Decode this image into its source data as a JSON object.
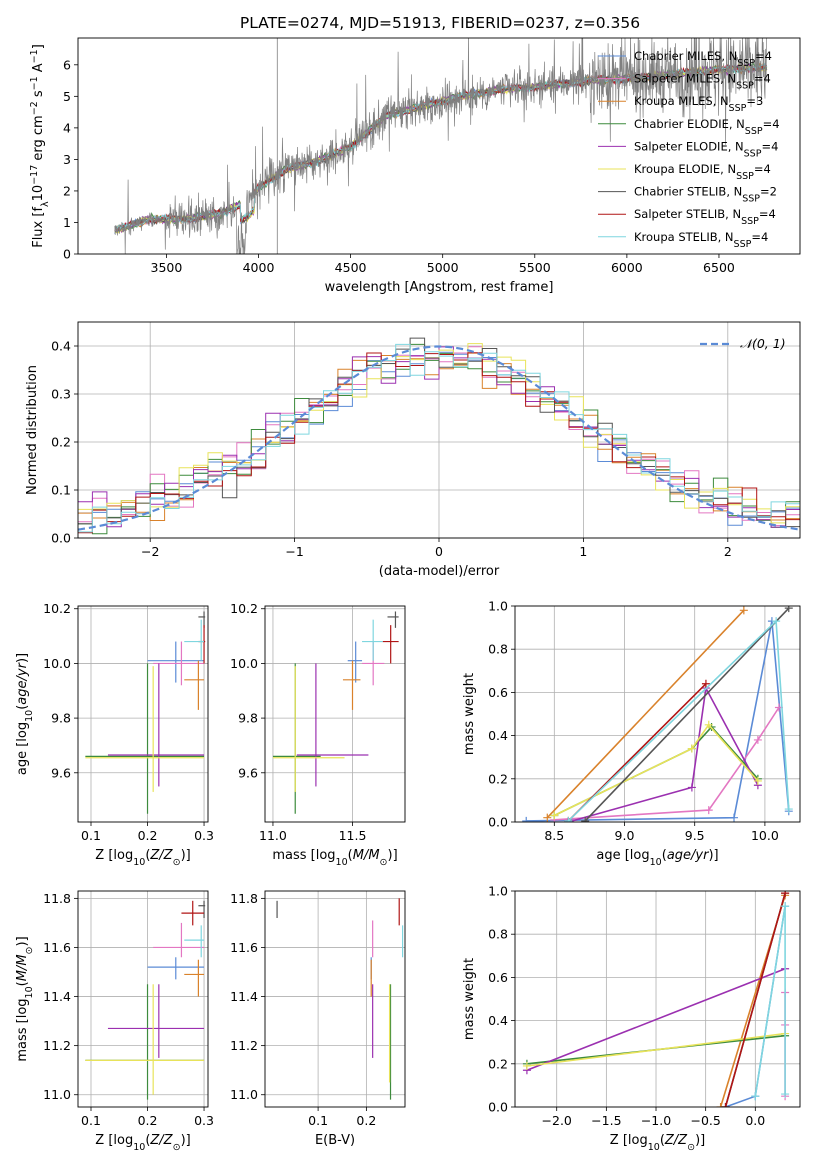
{
  "figure": {
    "title": "PLATE=0274, MJD=51913, FIBERID=0237, z=0.356"
  },
  "colors": {
    "Chabrier MILES": "#5b8bd6",
    "Salpeter MILES": "#e377c2",
    "Kroupa MILES": "#d9822b",
    "Chabrier ELODIE": "#3d8b3d",
    "Salpeter ELODIE": "#9b30b0",
    "Kroupa ELODIE": "#e8e35a",
    "Chabrier STELIB": "#555555",
    "Salpeter STELIB": "#b01515",
    "Kroupa STELIB": "#7fd6df",
    "data": "#808080",
    "normal_curve": "#5b8bd6",
    "grid": "#b0b0b0"
  },
  "chart_data": [
    {
      "id": "spectrum",
      "type": "line",
      "title": "PLATE=0274, MJD=51913, FIBERID=0237, z=0.356",
      "xlabel": "wavelength [Angstrom, rest frame]",
      "ylabel": "Flux [f_λ 10^-17 erg cm^-2 s^-1 A^-1]",
      "xlim": [
        3020,
        6940
      ],
      "ylim": [
        0,
        6.85
      ],
      "xticks": [
        3500,
        4000,
        4500,
        5000,
        5500,
        6000,
        6500
      ],
      "yticks": [
        0,
        1,
        2,
        3,
        4,
        5,
        6
      ],
      "grid": false,
      "legend_position": "top-right",
      "legend": [
        "Chabrier MILES, N_SSP=4",
        "Salpeter MILES, N_SSP=4",
        "Kroupa MILES, N_SSP=3",
        "Chabrier ELODIE, N_SSP=4",
        "Salpeter ELODIE, N_SSP=4",
        "Kroupa ELODIE, N_SSP=4",
        "Chabrier STELIB, N_SSP=2",
        "Salpeter STELIB, N_SSP=4",
        "Kroupa STELIB, N_SSP=4"
      ],
      "data_trend": {
        "x": [
          3220,
          3400,
          3600,
          3800,
          3950,
          4000,
          4150,
          4300,
          4500,
          4700,
          4900,
          5100,
          5300,
          5500,
          5800,
          6100,
          6400,
          6700
        ],
        "y": [
          0.75,
          1.1,
          1.1,
          1.3,
          1.7,
          2.1,
          2.7,
          2.9,
          3.4,
          4.4,
          4.7,
          5.0,
          5.2,
          5.3,
          5.5,
          5.6,
          5.8,
          5.9
        ]
      },
      "flux_spike": {
        "x": 4102,
        "y_top": 6.85
      }
    },
    {
      "id": "residuals",
      "type": "step",
      "xlabel": "(data-model)/error",
      "ylabel": "Normed distribution",
      "xlim": [
        -2.5,
        2.5
      ],
      "ylim": [
        0,
        0.45
      ],
      "xticks": [
        -2,
        -1,
        0,
        1,
        2
      ],
      "yticks": [
        0.0,
        0.1,
        0.2,
        0.3,
        0.4
      ],
      "grid": true,
      "legend_position": "top-right",
      "legend": [
        "𝒩(0, 1)"
      ],
      "bin_width": 0.1
    },
    {
      "id": "age_vs_Z",
      "type": "errorbar",
      "xlabel": "Z [log10(Z/Z⊙)]",
      "ylabel": "age  [log10(age/yr)]",
      "xlim": [
        0.077,
        0.307
      ],
      "ylim": [
        9.42,
        10.21
      ],
      "xticks": [
        0.1,
        0.2,
        0.3
      ],
      "yticks": [
        9.6,
        9.8,
        10.0,
        10.2
      ],
      "grid": true,
      "points": [
        {
          "model": "Chabrier MILES",
          "x": 0.25,
          "xlo": 0.2,
          "xhi": 0.3,
          "y": 10.01,
          "ylo": 9.93,
          "yhi": 10.08
        },
        {
          "model": "Salpeter MILES",
          "x": 0.26,
          "xlo": 0.21,
          "xhi": 0.3,
          "y": 10.0,
          "ylo": 9.92,
          "yhi": 10.08
        },
        {
          "model": "Kroupa MILES",
          "x": 0.29,
          "xlo": 0.265,
          "xhi": 0.3,
          "y": 9.94,
          "ylo": 9.83,
          "yhi": 10.01
        },
        {
          "model": "Chabrier ELODIE",
          "x": 0.2,
          "xlo": 0.09,
          "xhi": 0.3,
          "y": 9.66,
          "ylo": 9.45,
          "yhi": 10.0
        },
        {
          "model": "Salpeter ELODIE",
          "x": 0.22,
          "xlo": 0.13,
          "xhi": 0.3,
          "y": 9.665,
          "ylo": 9.55,
          "yhi": 10.0
        },
        {
          "model": "Kroupa ELODIE",
          "x": 0.21,
          "xlo": 0.09,
          "xhi": 0.3,
          "y": 9.655,
          "ylo": 9.53,
          "yhi": 9.99
        },
        {
          "model": "Chabrier STELIB",
          "x": 0.3,
          "xlo": 0.29,
          "xhi": 0.302,
          "y": 10.17,
          "ylo": 10.13,
          "yhi": 10.19
        },
        {
          "model": "Salpeter STELIB",
          "x": 0.3,
          "xlo": 0.29,
          "xhi": 0.302,
          "y": 10.08,
          "ylo": 10.0,
          "yhi": 10.14
        },
        {
          "model": "Kroupa STELIB",
          "x": 0.295,
          "xlo": 0.265,
          "xhi": 0.3,
          "y": 10.08,
          "ylo": 10.01,
          "yhi": 10.16
        }
      ]
    },
    {
      "id": "age_vs_mass",
      "type": "errorbar",
      "xlabel": "mass [log10(M/M⊙)]",
      "ylabel": "",
      "xlim": [
        10.95,
        11.83
      ],
      "ylim": [
        9.42,
        10.21
      ],
      "xticks": [
        11.0,
        11.5
      ],
      "yticks": [
        9.6,
        9.8,
        10.0,
        10.2
      ],
      "grid": true,
      "points": [
        {
          "model": "Chabrier MILES",
          "x": 11.52,
          "xlo": 11.47,
          "xhi": 11.56,
          "y": 10.01,
          "ylo": 9.93,
          "yhi": 10.08
        },
        {
          "model": "Salpeter MILES",
          "x": 11.63,
          "xlo": 11.56,
          "xhi": 11.7,
          "y": 10.0,
          "ylo": 9.92,
          "yhi": 10.08
        },
        {
          "model": "Kroupa MILES",
          "x": 11.5,
          "xlo": 11.44,
          "xhi": 11.55,
          "y": 9.94,
          "ylo": 9.83,
          "yhi": 10.01
        },
        {
          "model": "Chabrier ELODIE",
          "x": 11.14,
          "xlo": 11.0,
          "xhi": 11.3,
          "y": 9.66,
          "ylo": 9.45,
          "yhi": 10.0
        },
        {
          "model": "Salpeter ELODIE",
          "x": 11.27,
          "xlo": 11.15,
          "xhi": 11.6,
          "y": 9.665,
          "ylo": 9.55,
          "yhi": 10.0
        },
        {
          "model": "Kroupa ELODIE",
          "x": 11.14,
          "xlo": 11.0,
          "xhi": 11.45,
          "y": 9.655,
          "ylo": 9.53,
          "yhi": 9.99
        },
        {
          "model": "Chabrier STELIB",
          "x": 11.77,
          "xlo": 11.72,
          "xhi": 11.79,
          "y": 10.17,
          "ylo": 10.13,
          "yhi": 10.19
        },
        {
          "model": "Salpeter STELIB",
          "x": 11.74,
          "xlo": 11.69,
          "xhi": 11.79,
          "y": 10.08,
          "ylo": 10.0,
          "yhi": 10.14
        },
        {
          "model": "Kroupa STELIB",
          "x": 11.63,
          "xlo": 11.56,
          "xhi": 11.69,
          "y": 10.08,
          "ylo": 10.01,
          "yhi": 10.16
        }
      ]
    },
    {
      "id": "weight_vs_age",
      "type": "line",
      "xlabel": "age  [log10(age/yr)]",
      "ylabel": "mass weight",
      "xlim": [
        8.22,
        10.25
      ],
      "ylim": [
        0,
        1
      ],
      "xticks": [
        8.5,
        9.0,
        9.5,
        10.0
      ],
      "yticks": [
        0.0,
        0.2,
        0.4,
        0.6,
        0.8,
        1.0
      ],
      "grid": true,
      "series": [
        {
          "model": "Chabrier MILES",
          "x": [
            8.3,
            9.78,
            10.05,
            10.17
          ],
          "y": [
            0.005,
            0.02,
            0.93,
            0.05
          ]
        },
        {
          "model": "Salpeter MILES",
          "x": [
            8.5,
            9.6,
            9.95,
            10.1
          ],
          "y": [
            0.01,
            0.055,
            0.38,
            0.53
          ]
        },
        {
          "model": "Kroupa MILES",
          "x": [
            8.45,
            9.85
          ],
          "y": [
            0.02,
            0.98
          ]
        },
        {
          "model": "Chabrier ELODIE",
          "x": [
            8.5,
            9.48,
            9.62,
            9.95
          ],
          "y": [
            0.03,
            0.34,
            0.44,
            0.2
          ]
        },
        {
          "model": "Salpeter ELODIE",
          "x": [
            8.6,
            9.48,
            9.58,
            9.95
          ],
          "y": [
            0.0,
            0.16,
            0.62,
            0.17
          ]
        },
        {
          "model": "Kroupa ELODIE",
          "x": [
            8.5,
            9.48,
            9.6,
            9.95
          ],
          "y": [
            0.03,
            0.34,
            0.45,
            0.19
          ]
        },
        {
          "model": "Chabrier STELIB",
          "x": [
            8.72,
            10.17
          ],
          "y": [
            0.005,
            0.99
          ]
        },
        {
          "model": "Salpeter STELIB",
          "x": [
            8.6,
            9.58
          ],
          "y": [
            0.005,
            0.64
          ]
        },
        {
          "model": "Kroupa STELIB",
          "x": [
            8.6,
            10.08,
            10.17
          ],
          "y": [
            0.005,
            0.93,
            0.06
          ]
        }
      ]
    },
    {
      "id": "mass_vs_Z",
      "type": "errorbar",
      "xlabel": "Z [log10(Z/Z⊙)]",
      "ylabel": "mass [log10(M/M⊙)]",
      "xlim": [
        0.077,
        0.307
      ],
      "ylim": [
        10.95,
        11.83
      ],
      "xticks": [
        0.1,
        0.2,
        0.3
      ],
      "yticks": [
        11.0,
        11.2,
        11.4,
        11.6,
        11.8
      ],
      "grid": true,
      "points": [
        {
          "model": "Chabrier MILES",
          "x": 0.25,
          "xlo": 0.2,
          "xhi": 0.3,
          "y": 11.52,
          "ylo": 11.47,
          "yhi": 11.56
        },
        {
          "model": "Salpeter MILES",
          "x": 0.26,
          "xlo": 0.21,
          "xhi": 0.3,
          "y": 11.6,
          "ylo": 11.56,
          "yhi": 11.7
        },
        {
          "model": "Kroupa MILES",
          "x": 0.29,
          "xlo": 0.265,
          "xhi": 0.3,
          "y": 11.49,
          "ylo": 11.4,
          "yhi": 11.55
        },
        {
          "model": "Chabrier ELODIE",
          "x": 0.2,
          "xlo": 0.09,
          "xhi": 0.3,
          "y": 11.14,
          "ylo": 10.98,
          "yhi": 11.45
        },
        {
          "model": "Salpeter ELODIE",
          "x": 0.22,
          "xlo": 0.13,
          "xhi": 0.3,
          "y": 11.27,
          "ylo": 11.15,
          "yhi": 11.45
        },
        {
          "model": "Kroupa ELODIE",
          "x": 0.21,
          "xlo": 0.09,
          "xhi": 0.3,
          "y": 11.14,
          "ylo": 11.0,
          "yhi": 11.45
        },
        {
          "model": "Chabrier STELIB",
          "x": 0.3,
          "xlo": 0.29,
          "xhi": 0.302,
          "y": 11.77,
          "ylo": 11.72,
          "yhi": 11.79
        },
        {
          "model": "Salpeter STELIB",
          "x": 0.28,
          "xlo": 0.26,
          "xhi": 0.3,
          "y": 11.74,
          "ylo": 11.69,
          "yhi": 11.79
        },
        {
          "model": "Kroupa STELIB",
          "x": 0.295,
          "xlo": 0.265,
          "xhi": 0.3,
          "y": 11.63,
          "ylo": 11.56,
          "yhi": 11.69
        }
      ]
    },
    {
      "id": "mass_vs_ebv",
      "type": "errorbar",
      "xlabel": "E(B-V)",
      "ylabel": "",
      "xlim": [
        -0.01,
        0.28
      ],
      "ylim": [
        10.95,
        11.83
      ],
      "xticks": [
        0.1,
        0.2
      ],
      "yticks": [
        11.0,
        11.2,
        11.4,
        11.6,
        11.8
      ],
      "grid": true,
      "points": [
        {
          "model": "Chabrier MILES",
          "x": 0.21,
          "ylo": 11.47,
          "yhi": 11.56
        },
        {
          "model": "Salpeter MILES",
          "x": 0.213,
          "ylo": 11.56,
          "yhi": 11.71
        },
        {
          "model": "Kroupa MILES",
          "x": 0.21,
          "ylo": 11.4,
          "yhi": 11.55
        },
        {
          "model": "Chabrier ELODIE",
          "x": 0.25,
          "ylo": 10.98,
          "yhi": 11.45
        },
        {
          "model": "Salpeter ELODIE",
          "x": 0.213,
          "ylo": 11.15,
          "yhi": 11.45
        },
        {
          "model": "Kroupa ELODIE",
          "x": 0.248,
          "ylo": 11.05,
          "yhi": 11.45
        },
        {
          "model": "Chabrier STELIB",
          "x": 0.015,
          "ylo": 11.72,
          "yhi": 11.79
        },
        {
          "model": "Salpeter STELIB",
          "x": 0.268,
          "ylo": 11.69,
          "yhi": 11.8
        },
        {
          "model": "Kroupa STELIB",
          "x": 0.275,
          "ylo": 11.56,
          "yhi": 11.69
        }
      ]
    },
    {
      "id": "weight_vs_Z",
      "type": "line",
      "xlabel": "Z [log10(Z/Z⊙)]",
      "ylabel": "mass weight",
      "xlim": [
        -2.42,
        0.45
      ],
      "ylim": [
        0,
        1
      ],
      "xticks": [
        -2.0,
        -1.5,
        -1.0,
        -0.5,
        0.0
      ],
      "yticks": [
        0.0,
        0.2,
        0.4,
        0.6,
        0.8,
        1.0
      ],
      "grid": true,
      "series": [
        {
          "model": "Chabrier MILES",
          "x": [
            -0.3,
            0.0,
            0.3
          ],
          "y": [
            0.0,
            0.05,
            0.93
          ]
        },
        {
          "model": "Salpeter MILES",
          "x": [
            0.3,
            0.3,
            0.3
          ],
          "y": [
            0.38,
            0.53,
            0.05
          ]
        },
        {
          "model": "Kroupa MILES",
          "x": [
            -0.35,
            0.3
          ],
          "y": [
            0.0,
            0.98
          ]
        },
        {
          "model": "Chabrier ELODIE",
          "x": [
            -2.3,
            0.3
          ],
          "y": [
            0.2,
            0.33
          ]
        },
        {
          "model": "Salpeter ELODIE",
          "x": [
            -2.3,
            0.3
          ],
          "y": [
            0.17,
            0.64
          ]
        },
        {
          "model": "Kroupa ELODIE",
          "x": [
            -2.3,
            0.3
          ],
          "y": [
            0.19,
            0.34
          ]
        },
        {
          "model": "Chabrier STELIB",
          "x": [
            -0.3,
            0.3
          ],
          "y": [
            0.0,
            0.99
          ]
        },
        {
          "model": "Salpeter STELIB",
          "x": [
            -0.3,
            0.3
          ],
          "y": [
            0.0,
            0.99
          ]
        },
        {
          "model": "Kroupa STELIB",
          "x": [
            0.0,
            0.3,
            0.3
          ],
          "y": [
            0.05,
            0.93,
            0.06
          ]
        }
      ]
    }
  ]
}
